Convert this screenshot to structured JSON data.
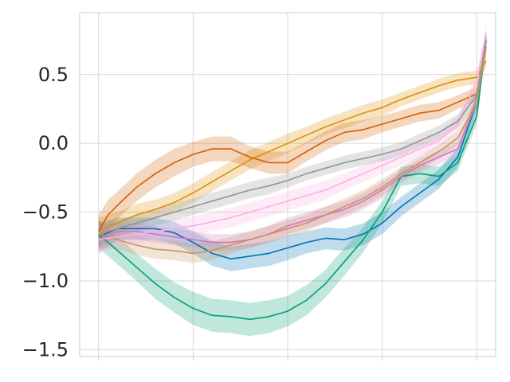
{
  "chart_data": {
    "type": "line",
    "title": "",
    "xlabel": "",
    "ylabel": "",
    "xlim": [
      -0.1,
      2.1
    ],
    "ylim": [
      -1.55,
      0.95
    ],
    "grid": true,
    "x_ticks": [
      0,
      0.5,
      1.0,
      1.5,
      2.0
    ],
    "y_ticks": [
      -1.5,
      -1.0,
      -0.5,
      0.0,
      0.5
    ],
    "y_tick_labels": [
      "−1.5",
      "−1.0",
      "−0.5",
      "0.0",
      "0.5"
    ],
    "band_opacity": 0.25,
    "series": [
      {
        "color": "#0173b2",
        "x": [
          0,
          0.1,
          0.2,
          0.3,
          0.4,
          0.5,
          0.6,
          0.7,
          0.8,
          0.9,
          1.0,
          1.1,
          1.2,
          1.3,
          1.4,
          1.5,
          1.6,
          1.7,
          1.8,
          1.9,
          2.0,
          2.05
        ],
        "y": [
          -0.68,
          -0.62,
          -0.62,
          -0.62,
          -0.65,
          -0.72,
          -0.8,
          -0.84,
          -0.82,
          -0.8,
          -0.76,
          -0.72,
          -0.69,
          -0.7,
          -0.66,
          -0.58,
          -0.46,
          -0.36,
          -0.26,
          -0.1,
          0.3,
          0.75
        ],
        "band": [
          0.1,
          0.08,
          0.08,
          0.08,
          0.08,
          0.08,
          0.09,
          0.09,
          0.09,
          0.09,
          0.09,
          0.08,
          0.08,
          0.08,
          0.08,
          0.08,
          0.07,
          0.07,
          0.07,
          0.07,
          0.06,
          0.06
        ]
      },
      {
        "color": "#de8f05",
        "x": [
          0,
          0.1,
          0.2,
          0.3,
          0.4,
          0.5,
          0.6,
          0.7,
          0.8,
          0.9,
          1.0,
          1.1,
          1.2,
          1.3,
          1.4,
          1.5,
          1.6,
          1.7,
          1.8,
          1.9,
          2.0,
          2.05
        ],
        "y": [
          -0.64,
          -0.58,
          -0.52,
          -0.48,
          -0.43,
          -0.36,
          -0.28,
          -0.2,
          -0.12,
          -0.06,
          0.0,
          0.06,
          0.12,
          0.17,
          0.22,
          0.26,
          0.32,
          0.37,
          0.42,
          0.46,
          0.48,
          0.6
        ],
        "band": [
          0.1,
          0.08,
          0.08,
          0.07,
          0.07,
          0.07,
          0.07,
          0.07,
          0.07,
          0.07,
          0.07,
          0.06,
          0.06,
          0.06,
          0.06,
          0.06,
          0.05,
          0.05,
          0.05,
          0.05,
          0.05,
          0.05
        ]
      },
      {
        "color": "#029e73",
        "x": [
          0,
          0.1,
          0.2,
          0.3,
          0.4,
          0.5,
          0.6,
          0.7,
          0.8,
          0.9,
          1.0,
          1.1,
          1.2,
          1.3,
          1.4,
          1.5,
          1.6,
          1.7,
          1.8,
          1.9,
          2.0,
          2.05
        ],
        "y": [
          -0.66,
          -0.78,
          -0.9,
          -1.02,
          -1.12,
          -1.2,
          -1.25,
          -1.26,
          -1.28,
          -1.26,
          -1.22,
          -1.14,
          -1.02,
          -0.86,
          -0.7,
          -0.5,
          -0.24,
          -0.22,
          -0.24,
          -0.14,
          0.2,
          0.75
        ],
        "band": [
          0.1,
          0.1,
          0.1,
          0.11,
          0.11,
          0.12,
          0.12,
          0.12,
          0.12,
          0.12,
          0.11,
          0.11,
          0.1,
          0.1,
          0.09,
          0.08,
          0.07,
          0.07,
          0.07,
          0.06,
          0.06,
          0.06
        ]
      },
      {
        "color": "#d55e00",
        "x": [
          0,
          0.05,
          0.1,
          0.2,
          0.3,
          0.4,
          0.5,
          0.6,
          0.7,
          0.8,
          0.9,
          1.0,
          1.1,
          1.2,
          1.3,
          1.4,
          1.5,
          1.6,
          1.7,
          1.8,
          1.9,
          2.0,
          2.05
        ],
        "y": [
          -0.64,
          -0.52,
          -0.45,
          -0.32,
          -0.22,
          -0.14,
          -0.08,
          -0.04,
          -0.04,
          -0.1,
          -0.14,
          -0.14,
          -0.06,
          0.02,
          0.08,
          0.1,
          0.14,
          0.18,
          0.22,
          0.24,
          0.3,
          0.36,
          0.7
        ],
        "band": [
          0.12,
          0.11,
          0.1,
          0.1,
          0.1,
          0.1,
          0.09,
          0.09,
          0.09,
          0.08,
          0.08,
          0.08,
          0.07,
          0.07,
          0.07,
          0.07,
          0.06,
          0.06,
          0.06,
          0.06,
          0.05,
          0.05,
          0.05
        ]
      },
      {
        "color": "#cc78bc",
        "x": [
          0,
          0.1,
          0.2,
          0.3,
          0.4,
          0.5,
          0.6,
          0.7,
          0.8,
          0.9,
          1.0,
          1.1,
          1.2,
          1.3,
          1.4,
          1.5,
          1.6,
          1.7,
          1.8,
          1.9,
          2.0,
          2.05
        ],
        "y": [
          -0.7,
          -0.64,
          -0.64,
          -0.66,
          -0.68,
          -0.7,
          -0.72,
          -0.72,
          -0.7,
          -0.66,
          -0.6,
          -0.56,
          -0.52,
          -0.48,
          -0.42,
          -0.34,
          -0.24,
          -0.16,
          -0.1,
          -0.04,
          0.3,
          0.78
        ],
        "band": [
          0.1,
          0.07,
          0.06,
          0.06,
          0.06,
          0.06,
          0.06,
          0.06,
          0.06,
          0.06,
          0.06,
          0.06,
          0.06,
          0.06,
          0.06,
          0.06,
          0.05,
          0.05,
          0.05,
          0.05,
          0.05,
          0.05
        ]
      },
      {
        "color": "#ca9161",
        "x": [
          0,
          0.1,
          0.2,
          0.3,
          0.4,
          0.5,
          0.6,
          0.7,
          0.8,
          0.9,
          1.0,
          1.1,
          1.2,
          1.3,
          1.4,
          1.5,
          1.6,
          1.7,
          1.8,
          1.9,
          2.0,
          2.05
        ],
        "y": [
          -0.66,
          -0.7,
          -0.74,
          -0.77,
          -0.78,
          -0.8,
          -0.78,
          -0.74,
          -0.7,
          -0.66,
          -0.62,
          -0.58,
          -0.52,
          -0.46,
          -0.4,
          -0.32,
          -0.22,
          -0.14,
          -0.06,
          0.04,
          0.3,
          0.7
        ],
        "band": [
          0.1,
          0.07,
          0.07,
          0.07,
          0.07,
          0.07,
          0.07,
          0.06,
          0.06,
          0.06,
          0.06,
          0.06,
          0.06,
          0.06,
          0.06,
          0.06,
          0.05,
          0.05,
          0.05,
          0.05,
          0.05,
          0.05
        ]
      },
      {
        "color": "#fbafe4",
        "x": [
          0,
          0.1,
          0.2,
          0.3,
          0.4,
          0.5,
          0.6,
          0.7,
          0.8,
          0.9,
          1.0,
          1.1,
          1.2,
          1.3,
          1.4,
          1.5,
          1.6,
          1.7,
          1.8,
          1.9,
          2.0,
          2.05
        ],
        "y": [
          -0.7,
          -0.68,
          -0.66,
          -0.64,
          -0.62,
          -0.6,
          -0.57,
          -0.54,
          -0.5,
          -0.46,
          -0.42,
          -0.38,
          -0.34,
          -0.28,
          -0.22,
          -0.16,
          -0.1,
          -0.04,
          0.02,
          0.14,
          0.45,
          0.8
        ],
        "band": [
          0.1,
          0.07,
          0.07,
          0.07,
          0.07,
          0.07,
          0.07,
          0.07,
          0.07,
          0.07,
          0.07,
          0.07,
          0.07,
          0.06,
          0.06,
          0.06,
          0.06,
          0.06,
          0.06,
          0.06,
          0.06,
          0.06
        ]
      },
      {
        "color": "#949494",
        "x": [
          0,
          0.1,
          0.2,
          0.3,
          0.4,
          0.5,
          0.6,
          0.7,
          0.8,
          0.9,
          1.0,
          1.1,
          1.2,
          1.3,
          1.4,
          1.5,
          1.6,
          1.7,
          1.8,
          1.9,
          2.0,
          2.05
        ],
        "y": [
          -0.66,
          -0.62,
          -0.58,
          -0.54,
          -0.5,
          -0.46,
          -0.42,
          -0.38,
          -0.34,
          -0.31,
          -0.27,
          -0.22,
          -0.18,
          -0.14,
          -0.11,
          -0.08,
          -0.04,
          0.02,
          0.08,
          0.16,
          0.35,
          0.75
        ],
        "band": [
          0.09,
          0.06,
          0.06,
          0.06,
          0.06,
          0.06,
          0.06,
          0.06,
          0.06,
          0.06,
          0.05,
          0.05,
          0.05,
          0.05,
          0.05,
          0.05,
          0.05,
          0.05,
          0.05,
          0.05,
          0.05,
          0.05
        ]
      }
    ]
  }
}
